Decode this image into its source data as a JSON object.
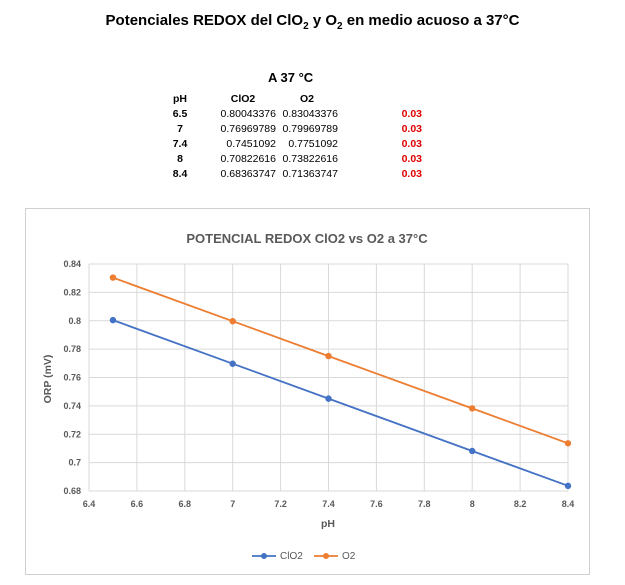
{
  "page": {
    "title_main": "Potenciales REDOX del ClO",
    "title_sub1": "2",
    "title_mid": " y O",
    "title_sub2": "2",
    "title_end": " en medio acuoso a 37°C"
  },
  "table": {
    "heading": "A 37 °C",
    "headers": {
      "ph": "pH",
      "clo2": "ClO2",
      "o2": "O2"
    },
    "rows": [
      {
        "ph": "6.5",
        "clo2": "0.80043376",
        "o2": "0.83043376",
        "diff": "0.03"
      },
      {
        "ph": "7",
        "clo2": "0.76969789",
        "o2": "0.79969789",
        "diff": "0.03"
      },
      {
        "ph": "7.4",
        "clo2": "0.7451092",
        "o2": "0.7751092",
        "diff": "0.03"
      },
      {
        "ph": "8",
        "clo2": "0.70822616",
        "o2": "0.73822616",
        "diff": "0.03"
      },
      {
        "ph": "8.4",
        "clo2": "0.68363747",
        "o2": "0.71363747",
        "diff": "0.03"
      }
    ]
  },
  "chart_data": {
    "type": "line",
    "title": "POTENCIAL REDOX ClO2 vs O2 a 37°C",
    "xlabel": "pH",
    "ylabel": "ORP (mV)",
    "xlim": [
      6.4,
      8.4
    ],
    "ylim": [
      0.68,
      0.84
    ],
    "xticks": [
      "6.4",
      "6.6",
      "6.8",
      "7",
      "7.2",
      "7.4",
      "7.6",
      "7.8",
      "8",
      "8.2",
      "8.4"
    ],
    "yticks": [
      "0.68",
      "0.7",
      "0.72",
      "0.74",
      "0.76",
      "0.78",
      "0.8",
      "0.82",
      "0.84"
    ],
    "grid": true,
    "legend_position": "bottom",
    "x": [
      6.5,
      7,
      7.4,
      8,
      8.4
    ],
    "series": [
      {
        "name": "ClO2",
        "color": "#4472c4",
        "values": [
          0.80043376,
          0.76969789,
          0.7451092,
          0.70822616,
          0.68363747
        ]
      },
      {
        "name": "O2",
        "color": "#ed7d31",
        "values": [
          0.83043376,
          0.79969789,
          0.7751092,
          0.73822616,
          0.71363747
        ]
      }
    ]
  }
}
